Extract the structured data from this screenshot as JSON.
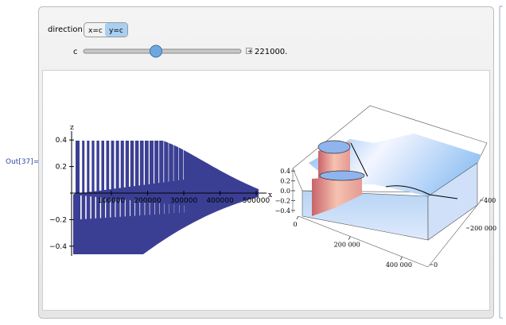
{
  "out_label": "Out[37]=",
  "controls": {
    "direction_label": "direction",
    "buttons": [
      "x=c",
      "y=c"
    ],
    "selected": "y=c",
    "slider_label": "c",
    "slider_value": {
      "value": 221000,
      "label": "221000."
    }
  },
  "left_plot": {
    "x_label": "x",
    "z_label": "z",
    "xticks": [
      100000,
      200000,
      300000,
      400000,
      500000
    ],
    "zticks": [
      0.4,
      0.2,
      {
        "value": -0.2,
        "label": "−0.2"
      },
      {
        "value": -0.4,
        "label": "−0.4"
      }
    ]
  },
  "right_plot": {
    "zticks": [
      0.4,
      0.2,
      {
        "value": 0,
        "label": "0.0"
      },
      {
        "value": -0.2,
        "label": "−0.2"
      },
      {
        "value": -0.4,
        "label": "−0.4"
      }
    ],
    "xticks": [
      0,
      {
        "value": 200000,
        "label": "200 000"
      },
      {
        "value": 400000,
        "label": "400 000"
      }
    ],
    "yticks": [
      0,
      {
        "value": 200000,
        "label": "200 000"
      },
      400
    ]
  }
}
